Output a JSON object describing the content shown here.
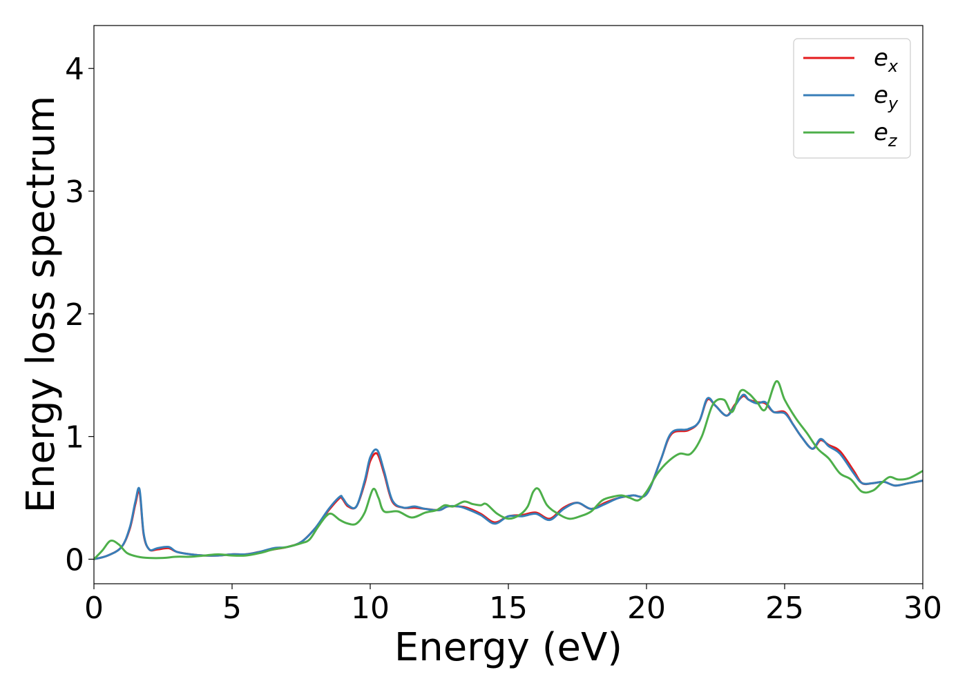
{
  "chart_data": {
    "type": "line",
    "title": "",
    "xlabel": "Energy (eV)",
    "ylabel": "Energy loss spectrum",
    "xlim": [
      0,
      30
    ],
    "ylim": [
      -0.2,
      4.35
    ],
    "xticks": [
      0,
      5,
      10,
      15,
      20,
      25,
      30
    ],
    "yticks": [
      0,
      1,
      2,
      3,
      4
    ],
    "xtick_labels": [
      "0",
      "5",
      "10",
      "15",
      "20",
      "25",
      "30"
    ],
    "ytick_labels": [
      "0",
      "1",
      "2",
      "3",
      "4"
    ],
    "grid": false,
    "legend_position": "top-right",
    "series": [
      {
        "name_base": "e",
        "name_sub": "x",
        "color": "#e41a1c",
        "x": [
          0,
          0.5,
          1.0,
          1.3,
          1.5,
          1.65,
          1.8,
          2.0,
          2.3,
          2.7,
          3.0,
          3.5,
          4.0,
          4.5,
          5.0,
          5.5,
          6.0,
          6.5,
          7.0,
          7.5,
          8.0,
          8.5,
          8.9,
          9.0,
          9.2,
          9.5,
          9.8,
          10.0,
          10.25,
          10.5,
          10.8,
          11.2,
          11.6,
          12.0,
          12.5,
          12.8,
          13.2,
          13.5,
          14.0,
          14.5,
          15.0,
          15.5,
          16.0,
          16.5,
          17.0,
          17.5,
          18.0,
          18.5,
          19.0,
          19.5,
          20.0,
          20.5,
          20.9,
          21.5,
          21.9,
          22.2,
          22.5,
          22.9,
          23.2,
          23.5,
          23.7,
          24.0,
          24.3,
          24.6,
          25.0,
          25.3,
          25.6,
          26.0,
          26.3,
          26.6,
          27.0,
          27.5,
          27.8,
          28.2,
          28.6,
          29.0,
          29.5,
          30.0
        ],
        "y": [
          0.0,
          0.03,
          0.1,
          0.25,
          0.45,
          0.55,
          0.2,
          0.08,
          0.08,
          0.09,
          0.06,
          0.04,
          0.03,
          0.03,
          0.04,
          0.04,
          0.06,
          0.08,
          0.1,
          0.14,
          0.25,
          0.4,
          0.5,
          0.49,
          0.43,
          0.43,
          0.62,
          0.8,
          0.86,
          0.7,
          0.47,
          0.42,
          0.42,
          0.41,
          0.4,
          0.43,
          0.43,
          0.42,
          0.37,
          0.3,
          0.35,
          0.36,
          0.38,
          0.33,
          0.42,
          0.46,
          0.41,
          0.46,
          0.5,
          0.52,
          0.53,
          0.8,
          1.02,
          1.05,
          1.12,
          1.3,
          1.25,
          1.17,
          1.26,
          1.33,
          1.3,
          1.28,
          1.27,
          1.2,
          1.2,
          1.1,
          1.0,
          0.9,
          0.97,
          0.93,
          0.88,
          0.72,
          0.62,
          0.62,
          0.63,
          0.6,
          0.62,
          0.64
        ]
      },
      {
        "name_base": "e",
        "name_sub": "y",
        "color": "#377eb8",
        "x": [
          0,
          0.5,
          1.0,
          1.3,
          1.5,
          1.65,
          1.8,
          2.0,
          2.3,
          2.7,
          3.0,
          3.5,
          4.0,
          4.5,
          5.0,
          5.5,
          6.0,
          6.5,
          7.0,
          7.5,
          8.0,
          8.5,
          8.9,
          9.0,
          9.2,
          9.5,
          9.8,
          10.0,
          10.25,
          10.5,
          10.8,
          11.2,
          11.6,
          12.0,
          12.5,
          12.8,
          13.2,
          13.5,
          14.0,
          14.5,
          15.0,
          15.5,
          16.0,
          16.5,
          17.0,
          17.5,
          18.0,
          18.5,
          19.0,
          19.5,
          20.0,
          20.5,
          20.9,
          21.5,
          21.9,
          22.2,
          22.5,
          22.9,
          23.2,
          23.5,
          23.7,
          24.0,
          24.3,
          24.6,
          25.0,
          25.3,
          25.6,
          26.0,
          26.3,
          26.6,
          27.0,
          27.5,
          27.8,
          28.2,
          28.6,
          29.0,
          29.5,
          30.0
        ],
        "y": [
          0.0,
          0.03,
          0.1,
          0.26,
          0.47,
          0.57,
          0.21,
          0.08,
          0.09,
          0.1,
          0.06,
          0.04,
          0.03,
          0.03,
          0.04,
          0.04,
          0.06,
          0.09,
          0.1,
          0.14,
          0.25,
          0.41,
          0.51,
          0.5,
          0.44,
          0.43,
          0.64,
          0.83,
          0.89,
          0.72,
          0.48,
          0.42,
          0.43,
          0.41,
          0.4,
          0.43,
          0.43,
          0.41,
          0.36,
          0.29,
          0.35,
          0.35,
          0.37,
          0.32,
          0.41,
          0.46,
          0.41,
          0.45,
          0.5,
          0.52,
          0.53,
          0.8,
          1.03,
          1.06,
          1.12,
          1.31,
          1.25,
          1.17,
          1.25,
          1.34,
          1.3,
          1.27,
          1.28,
          1.2,
          1.19,
          1.1,
          1.0,
          0.9,
          0.98,
          0.92,
          0.86,
          0.7,
          0.62,
          0.62,
          0.63,
          0.6,
          0.62,
          0.64
        ]
      },
      {
        "name_base": "e",
        "name_sub": "z",
        "color": "#4daf4a",
        "x": [
          0,
          0.3,
          0.6,
          0.9,
          1.2,
          1.6,
          2.0,
          2.5,
          3.0,
          3.5,
          4.0,
          4.5,
          5.0,
          5.5,
          6.0,
          6.5,
          7.0,
          7.5,
          7.8,
          8.1,
          8.4,
          8.6,
          8.9,
          9.2,
          9.5,
          9.8,
          10.1,
          10.3,
          10.5,
          11.0,
          11.5,
          12.0,
          12.4,
          12.7,
          13.0,
          13.4,
          13.7,
          14.0,
          14.2,
          14.6,
          15.0,
          15.4,
          15.7,
          15.9,
          16.1,
          16.4,
          16.8,
          17.2,
          17.6,
          18.0,
          18.4,
          18.8,
          19.1,
          19.4,
          19.7,
          20.0,
          20.4,
          20.8,
          21.2,
          21.6,
          22.0,
          22.4,
          22.8,
          23.1,
          23.4,
          23.7,
          24.0,
          24.3,
          24.7,
          25.0,
          25.4,
          25.8,
          26.2,
          26.6,
          27.0,
          27.4,
          27.8,
          28.2,
          28.5,
          28.8,
          29.1,
          29.5,
          30.0
        ],
        "y": [
          0.0,
          0.07,
          0.15,
          0.12,
          0.05,
          0.02,
          0.01,
          0.01,
          0.02,
          0.02,
          0.03,
          0.04,
          0.03,
          0.03,
          0.05,
          0.08,
          0.1,
          0.13,
          0.16,
          0.26,
          0.35,
          0.37,
          0.32,
          0.29,
          0.29,
          0.38,
          0.57,
          0.5,
          0.39,
          0.39,
          0.34,
          0.38,
          0.4,
          0.44,
          0.43,
          0.47,
          0.45,
          0.44,
          0.45,
          0.37,
          0.33,
          0.36,
          0.43,
          0.55,
          0.57,
          0.44,
          0.37,
          0.33,
          0.35,
          0.39,
          0.48,
          0.51,
          0.52,
          0.5,
          0.48,
          0.55,
          0.7,
          0.8,
          0.86,
          0.86,
          1.0,
          1.26,
          1.3,
          1.2,
          1.37,
          1.35,
          1.28,
          1.22,
          1.45,
          1.3,
          1.15,
          1.03,
          0.9,
          0.82,
          0.7,
          0.65,
          0.55,
          0.56,
          0.62,
          0.67,
          0.65,
          0.66,
          0.72
        ]
      }
    ]
  }
}
